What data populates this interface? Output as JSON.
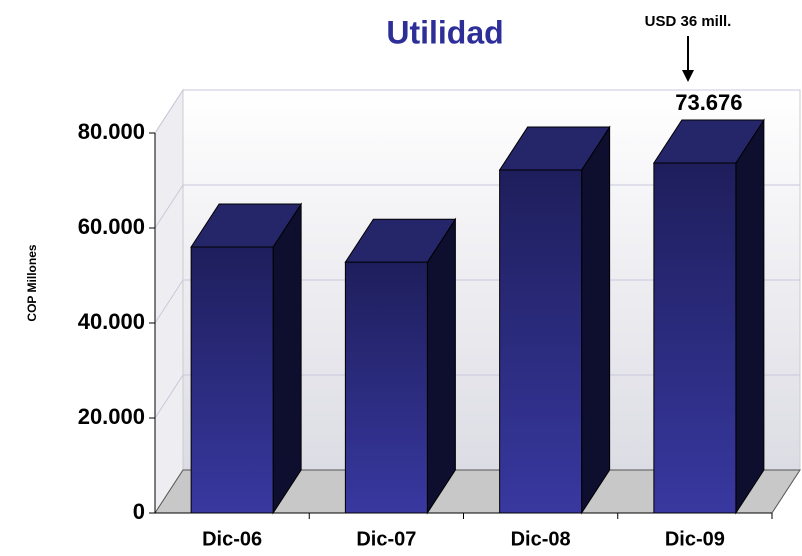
{
  "chart_data": {
    "type": "bar3d",
    "title": "Utilidad",
    "y_label": "COP Millones",
    "annotation": "USD 36 mill.",
    "categories": [
      "Dic-06",
      "Dic-07",
      "Dic-08",
      "Dic-09"
    ],
    "values": [
      56000,
      52800,
      72200,
      73676
    ],
    "value_labels": [
      null,
      null,
      null,
      "73.676"
    ],
    "color": "#2b2b85",
    "ylim": [
      0,
      80000
    ],
    "yticks": [
      0,
      {
        "value": 20000,
        "label": "20.000"
      },
      {
        "value": 40000,
        "label": "40.000"
      },
      {
        "value": 60000,
        "label": "60.000"
      },
      {
        "value": 80000,
        "label": "80.000"
      }
    ],
    "grid": true
  }
}
